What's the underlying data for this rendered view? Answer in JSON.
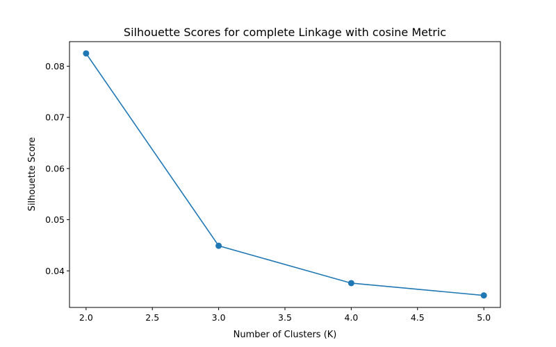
{
  "chart_data": {
    "type": "line",
    "title": "Silhouette Scores for complete Linkage with cosine Metric",
    "xlabel": "Number of Clusters (K)",
    "ylabel": "Silhouette Score",
    "xlim": [
      1.875,
      5.125
    ],
    "ylim": [
      0.03285,
      0.0848
    ],
    "xticks": [
      "2.0",
      "2.5",
      "3.0",
      "3.5",
      "4.0",
      "4.5",
      "5.0"
    ],
    "yticks": [
      "0.04",
      "0.05",
      "0.06",
      "0.07",
      "0.08"
    ],
    "grid": false,
    "series": [
      {
        "x": [
          2,
          3,
          4,
          5
        ],
        "values": [
          0.0825,
          0.0449,
          0.0376,
          0.0352
        ],
        "color": "#1f77b4",
        "marker": "circle"
      }
    ]
  }
}
